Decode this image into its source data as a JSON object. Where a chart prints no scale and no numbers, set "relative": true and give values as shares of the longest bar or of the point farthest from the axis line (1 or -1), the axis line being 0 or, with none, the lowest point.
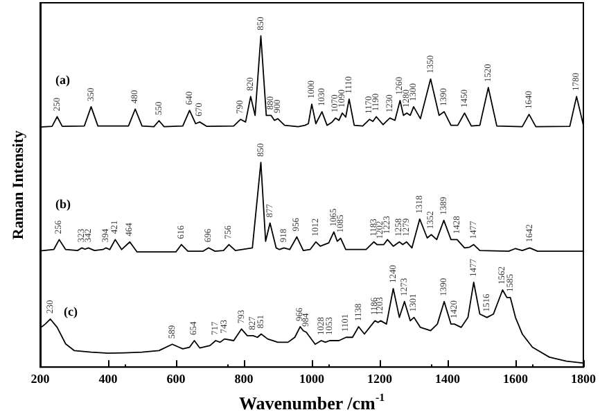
{
  "chart_data": {
    "type": "line",
    "relative": true,
    "xlabel": "Wavenumber /cm$^{-1}$",
    "ylabel": "Raman Intensity",
    "xlim": [
      200,
      1800
    ],
    "xticks": [
      200,
      400,
      600,
      800,
      1000,
      1200,
      1400,
      1600,
      1800
    ],
    "grid": false,
    "legend": false,
    "marker": "none",
    "line_style": "solid",
    "series": [
      {
        "name": "(a)",
        "color": "#000000",
        "x": [
          200,
          235,
          250,
          265,
          330,
          350,
          370,
          460,
          480,
          500,
          535,
          550,
          565,
          620,
          640,
          658,
          670,
          690,
          770,
          790,
          805,
          820,
          833,
          850,
          866,
          880,
          890,
          900,
          920,
          960,
          980,
          990,
          1000,
          1012,
          1030,
          1045,
          1060,
          1070,
          1080,
          1090,
          1100,
          1110,
          1125,
          1150,
          1170,
          1180,
          1190,
          1210,
          1230,
          1245,
          1260,
          1270,
          1280,
          1290,
          1300,
          1320,
          1350,
          1375,
          1390,
          1410,
          1430,
          1450,
          1470,
          1495,
          1520,
          1545,
          1620,
          1640,
          1660,
          1760,
          1780,
          1800
        ],
        "values": [
          0.725,
          0.727,
          0.756,
          0.727,
          0.728,
          0.786,
          0.728,
          0.728,
          0.779,
          0.728,
          0.726,
          0.744,
          0.726,
          0.728,
          0.775,
          0.735,
          0.74,
          0.727,
          0.728,
          0.748,
          0.74,
          0.817,
          0.76,
          1.0,
          0.76,
          0.76,
          0.745,
          0.75,
          0.73,
          0.726,
          0.73,
          0.735,
          0.794,
          0.735,
          0.771,
          0.73,
          0.74,
          0.752,
          0.745,
          0.767,
          0.755,
          0.809,
          0.73,
          0.728,
          0.748,
          0.742,
          0.756,
          0.732,
          0.752,
          0.745,
          0.805,
          0.76,
          0.767,
          0.76,
          0.786,
          0.75,
          0.87,
          0.76,
          0.771,
          0.73,
          0.73,
          0.767,
          0.728,
          0.73,
          0.844,
          0.728,
          0.726,
          0.763,
          0.726,
          0.727,
          0.817,
          0.73
        ]
      },
      {
        "name": "(b)",
        "color": "#000000",
        "x": [
          200,
          240,
          256,
          275,
          310,
          323,
          332,
          342,
          360,
          385,
          394,
          405,
          421,
          440,
          464,
          485,
          600,
          616,
          635,
          680,
          696,
          715,
          740,
          756,
          775,
          825,
          850,
          864,
          877,
          895,
          905,
          918,
          935,
          956,
          975,
          995,
          1012,
          1025,
          1050,
          1065,
          1075,
          1085,
          1100,
          1160,
          1183,
          1192,
          1202,
          1212,
          1223,
          1240,
          1258,
          1268,
          1279,
          1295,
          1318,
          1340,
          1352,
          1368,
          1389,
          1410,
          1428,
          1450,
          1465,
          1477,
          1495,
          1580,
          1600,
          1620,
          1642,
          1665,
          1800
        ],
        "values": [
          0.351,
          0.355,
          0.385,
          0.355,
          0.352,
          0.36,
          0.356,
          0.36,
          0.352,
          0.355,
          0.36,
          0.355,
          0.385,
          0.355,
          0.378,
          0.348,
          0.348,
          0.37,
          0.35,
          0.35,
          0.36,
          0.35,
          0.352,
          0.37,
          0.352,
          0.36,
          0.618,
          0.38,
          0.435,
          0.36,
          0.355,
          0.36,
          0.355,
          0.393,
          0.352,
          0.355,
          0.378,
          0.365,
          0.375,
          0.408,
          0.38,
          0.389,
          0.355,
          0.355,
          0.378,
          0.37,
          0.37,
          0.37,
          0.385,
          0.365,
          0.378,
          0.37,
          0.378,
          0.36,
          0.447,
          0.39,
          0.4,
          0.385,
          0.443,
          0.385,
          0.385,
          0.36,
          0.362,
          0.37,
          0.352,
          0.35,
          0.358,
          0.352,
          0.36,
          0.35,
          0.35
        ]
      },
      {
        "name": "(c)",
        "color": "#000000",
        "x": [
          200,
          215,
          230,
          250,
          275,
          300,
          350,
          400,
          450,
          500,
          550,
          589,
          620,
          640,
          654,
          670,
          700,
          717,
          730,
          743,
          770,
          793,
          810,
          827,
          840,
          851,
          870,
          900,
          930,
          950,
          966,
          975,
          984,
          1010,
          1028,
          1040,
          1053,
          1080,
          1101,
          1120,
          1138,
          1155,
          1186,
          1195,
          1203,
          1220,
          1240,
          1258,
          1273,
          1290,
          1301,
          1320,
          1350,
          1370,
          1390,
          1410,
          1420,
          1440,
          1460,
          1477,
          1495,
          1516,
          1535,
          1562,
          1575,
          1585,
          1600,
          1620,
          1650,
          1700,
          1750,
          1800
        ],
        "values": [
          0.118,
          0.13,
          0.145,
          0.12,
          0.07,
          0.05,
          0.045,
          0.042,
          0.043,
          0.045,
          0.05,
          0.069,
          0.055,
          0.06,
          0.08,
          0.058,
          0.065,
          0.08,
          0.075,
          0.085,
          0.08,
          0.115,
          0.095,
          0.095,
          0.09,
          0.1,
          0.085,
          0.075,
          0.075,
          0.09,
          0.122,
          0.11,
          0.105,
          0.069,
          0.08,
          0.075,
          0.08,
          0.08,
          0.09,
          0.09,
          0.122,
          0.1,
          0.14,
          0.135,
          0.14,
          0.13,
          0.237,
          0.15,
          0.198,
          0.14,
          0.15,
          0.12,
          0.11,
          0.13,
          0.198,
          0.13,
          0.13,
          0.12,
          0.15,
          0.256,
          0.16,
          0.15,
          0.16,
          0.233,
          0.21,
          0.21,
          0.15,
          0.1,
          0.06,
          0.03,
          0.018,
          0.012
        ]
      }
    ],
    "annotations": [
      {
        "text": "250",
        "x": 250,
        "y": 0.756
      },
      {
        "text": "350",
        "x": 350,
        "y": 0.786
      },
      {
        "text": "480",
        "x": 480,
        "y": 0.779
      },
      {
        "text": "550",
        "x": 550,
        "y": 0.744
      },
      {
        "text": "640",
        "x": 640,
        "y": 0.775
      },
      {
        "text": "670",
        "x": 670,
        "y": 0.74
      },
      {
        "text": "790",
        "x": 790,
        "y": 0.748
      },
      {
        "text": "820",
        "x": 820,
        "y": 0.817
      },
      {
        "text": "850",
        "x": 850,
        "y": 1.0
      },
      {
        "text": "880",
        "x": 880,
        "y": 0.76
      },
      {
        "text": "900",
        "x": 900,
        "y": 0.75
      },
      {
        "text": "1000",
        "x": 1000,
        "y": 0.794
      },
      {
        "text": "1030",
        "x": 1030,
        "y": 0.771
      },
      {
        "text": "1070",
        "x": 1070,
        "y": 0.752
      },
      {
        "text": "1090",
        "x": 1090,
        "y": 0.767
      },
      {
        "text": "1110",
        "x": 1110,
        "y": 0.809
      },
      {
        "text": "1170",
        "x": 1170,
        "y": 0.748
      },
      {
        "text": "1190",
        "x": 1190,
        "y": 0.756
      },
      {
        "text": "1230",
        "x": 1230,
        "y": 0.752
      },
      {
        "text": "1260",
        "x": 1260,
        "y": 0.805
      },
      {
        "text": "1280",
        "x": 1280,
        "y": 0.767
      },
      {
        "text": "1300",
        "x": 1300,
        "y": 0.786
      },
      {
        "text": "1350",
        "x": 1350,
        "y": 0.87
      },
      {
        "text": "1390",
        "x": 1390,
        "y": 0.771
      },
      {
        "text": "1450",
        "x": 1450,
        "y": 0.767
      },
      {
        "text": "1520",
        "x": 1520,
        "y": 0.844
      },
      {
        "text": "1640",
        "x": 1640,
        "y": 0.763
      },
      {
        "text": "1780",
        "x": 1780,
        "y": 0.817
      },
      {
        "text": "256",
        "x": 256,
        "y": 0.385
      },
      {
        "text": "323",
        "x": 323,
        "y": 0.36
      },
      {
        "text": "342",
        "x": 342,
        "y": 0.36
      },
      {
        "text": "394",
        "x": 394,
        "y": 0.36
      },
      {
        "text": "421",
        "x": 421,
        "y": 0.385
      },
      {
        "text": "464",
        "x": 464,
        "y": 0.378
      },
      {
        "text": "616",
        "x": 616,
        "y": 0.37
      },
      {
        "text": "696",
        "x": 696,
        "y": 0.36
      },
      {
        "text": "756",
        "x": 756,
        "y": 0.37
      },
      {
        "text": "850",
        "x": 850,
        "y": 0.618
      },
      {
        "text": "877",
        "x": 877,
        "y": 0.435
      },
      {
        "text": "918",
        "x": 918,
        "y": 0.36
      },
      {
        "text": "956",
        "x": 956,
        "y": 0.393
      },
      {
        "text": "1012",
        "x": 1012,
        "y": 0.378
      },
      {
        "text": "1065",
        "x": 1065,
        "y": 0.408
      },
      {
        "text": "1085",
        "x": 1085,
        "y": 0.389
      },
      {
        "text": "1183",
        "x": 1183,
        "y": 0.378
      },
      {
        "text": "1202",
        "x": 1202,
        "y": 0.37
      },
      {
        "text": "1223",
        "x": 1223,
        "y": 0.385
      },
      {
        "text": "1258",
        "x": 1258,
        "y": 0.378
      },
      {
        "text": "1279",
        "x": 1279,
        "y": 0.378
      },
      {
        "text": "1318",
        "x": 1318,
        "y": 0.447
      },
      {
        "text": "1352",
        "x": 1352,
        "y": 0.4
      },
      {
        "text": "1389",
        "x": 1389,
        "y": 0.443
      },
      {
        "text": "1428",
        "x": 1428,
        "y": 0.385
      },
      {
        "text": "1477",
        "x": 1477,
        "y": 0.37
      },
      {
        "text": "1642",
        "x": 1642,
        "y": 0.36
      },
      {
        "text": "230",
        "x": 230,
        "y": 0.145
      },
      {
        "text": "589",
        "x": 589,
        "y": 0.069
      },
      {
        "text": "654",
        "x": 654,
        "y": 0.08
      },
      {
        "text": "717",
        "x": 717,
        "y": 0.08
      },
      {
        "text": "743",
        "x": 743,
        "y": 0.085
      },
      {
        "text": "793",
        "x": 793,
        "y": 0.115
      },
      {
        "text": "827",
        "x": 827,
        "y": 0.095
      },
      {
        "text": "851",
        "x": 851,
        "y": 0.1
      },
      {
        "text": "966",
        "x": 966,
        "y": 0.122
      },
      {
        "text": "984",
        "x": 984,
        "y": 0.105
      },
      {
        "text": "1028",
        "x": 1028,
        "y": 0.08
      },
      {
        "text": "1053",
        "x": 1053,
        "y": 0.08
      },
      {
        "text": "1101",
        "x": 1101,
        "y": 0.09
      },
      {
        "text": "1138",
        "x": 1138,
        "y": 0.122
      },
      {
        "text": "1186",
        "x": 1186,
        "y": 0.14
      },
      {
        "text": "1203",
        "x": 1203,
        "y": 0.14
      },
      {
        "text": "1240",
        "x": 1240,
        "y": 0.237
      },
      {
        "text": "1273",
        "x": 1273,
        "y": 0.198
      },
      {
        "text": "1301",
        "x": 1301,
        "y": 0.15
      },
      {
        "text": "1390",
        "x": 1390,
        "y": 0.198
      },
      {
        "text": "1420",
        "x": 1420,
        "y": 0.13
      },
      {
        "text": "1477",
        "x": 1477,
        "y": 0.256
      },
      {
        "text": "1516",
        "x": 1516,
        "y": 0.15
      },
      {
        "text": "1562",
        "x": 1562,
        "y": 0.233
      },
      {
        "text": "1585",
        "x": 1585,
        "y": 0.21
      }
    ]
  }
}
